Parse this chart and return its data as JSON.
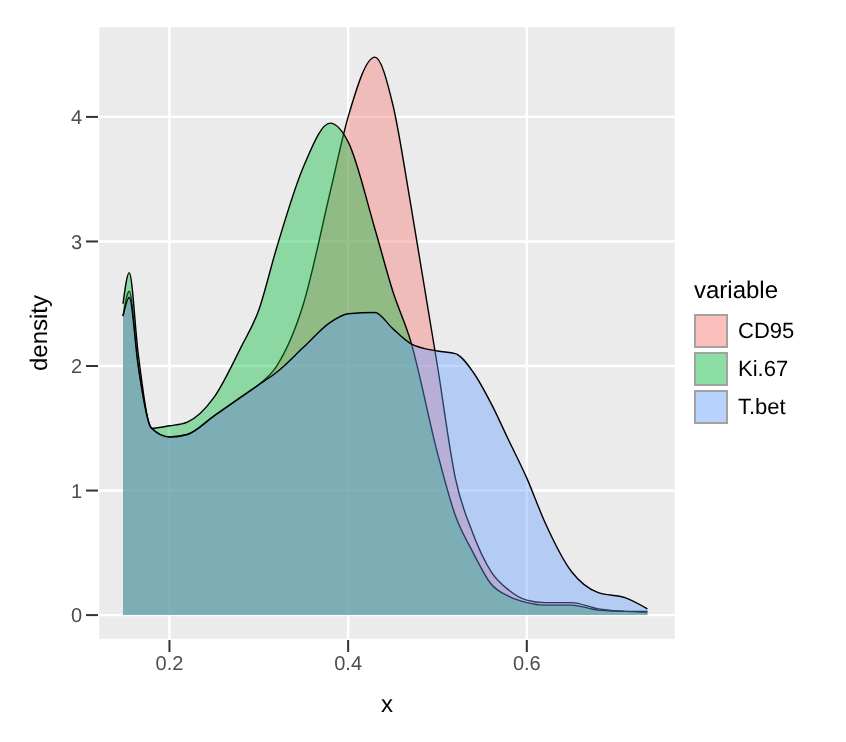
{
  "chart_data": {
    "type": "area",
    "xlabel": "x",
    "ylabel": "density",
    "legend_title": "variable",
    "x": [
      0.148,
      0.155,
      0.165,
      0.18,
      0.2,
      0.22,
      0.25,
      0.28,
      0.3,
      0.32,
      0.35,
      0.38,
      0.4,
      0.43,
      0.45,
      0.47,
      0.5,
      0.52,
      0.54,
      0.56,
      0.58,
      0.6,
      0.62,
      0.65,
      0.68,
      0.71,
      0.735
    ],
    "series": [
      {
        "name": "CD95",
        "color": "#F8766D",
        "values": [
          2.4,
          2.6,
          2.0,
          1.5,
          1.43,
          1.45,
          1.6,
          1.75,
          1.85,
          2.0,
          2.5,
          3.4,
          4.0,
          4.48,
          4.1,
          3.3,
          2.0,
          1.1,
          0.65,
          0.35,
          0.2,
          0.12,
          0.1,
          0.1,
          0.05,
          0.03,
          0.02
        ]
      },
      {
        "name": "Ki.67",
        "color": "#00BA38",
        "values": [
          2.5,
          2.75,
          2.1,
          1.5,
          1.52,
          1.55,
          1.75,
          2.15,
          2.45,
          2.95,
          3.6,
          3.95,
          3.8,
          3.1,
          2.6,
          2.2,
          1.3,
          0.8,
          0.5,
          0.25,
          0.15,
          0.1,
          0.08,
          0.08,
          0.04,
          0.03,
          0.03
        ]
      },
      {
        "name": "T.bet",
        "color": "#619CFF",
        "values": [
          2.4,
          2.55,
          2.0,
          1.5,
          1.43,
          1.45,
          1.6,
          1.75,
          1.85,
          1.95,
          2.15,
          2.35,
          2.42,
          2.43,
          2.3,
          2.18,
          2.12,
          2.1,
          1.95,
          1.7,
          1.4,
          1.1,
          0.75,
          0.35,
          0.18,
          0.14,
          0.05
        ]
      }
    ],
    "xlim": [
      0.12,
      0.767
    ],
    "xticks": [
      0.2,
      0.4,
      0.6
    ],
    "ylim": [
      -0.2,
      4.73
    ],
    "yticks": [
      0,
      1,
      2,
      3,
      4
    ],
    "grid": true,
    "legend": "right"
  }
}
